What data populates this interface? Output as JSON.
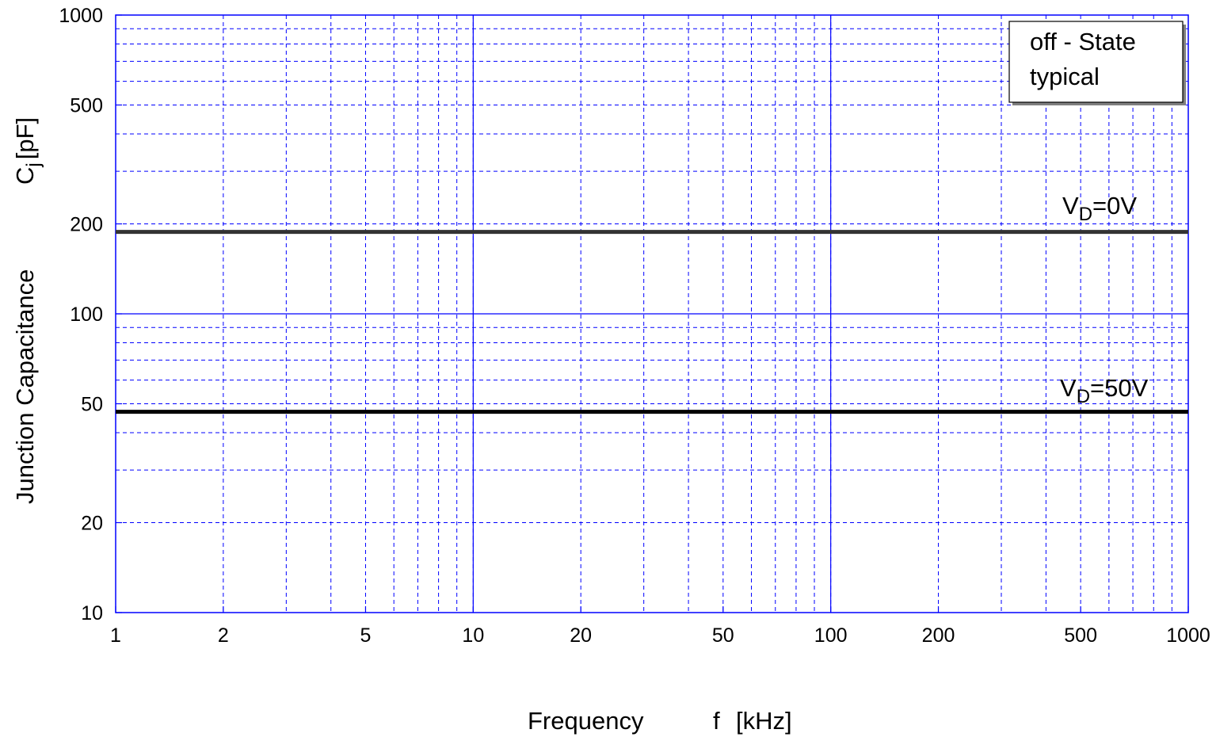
{
  "chart_data": {
    "type": "line",
    "x_scale": "log",
    "y_scale": "log",
    "xlim": [
      1,
      1000
    ],
    "ylim": [
      10,
      1000
    ],
    "x_ticks": [
      {
        "value": 1,
        "label": "1"
      },
      {
        "value": 2,
        "label": "2"
      },
      {
        "value": 5,
        "label": "5"
      },
      {
        "value": 10,
        "label": "10"
      },
      {
        "value": 20,
        "label": "20"
      },
      {
        "value": 50,
        "label": "50"
      },
      {
        "value": 100,
        "label": "100"
      },
      {
        "value": 200,
        "label": "200"
      },
      {
        "value": 500,
        "label": "500"
      },
      {
        "value": 1000,
        "label": "1000"
      }
    ],
    "y_ticks": [
      {
        "value": 10,
        "label": "10"
      },
      {
        "value": 20,
        "label": "20"
      },
      {
        "value": 50,
        "label": "50"
      },
      {
        "value": 100,
        "label": "100"
      },
      {
        "value": 200,
        "label": "200"
      },
      {
        "value": 500,
        "label": "500"
      },
      {
        "value": 1000,
        "label": "1000"
      }
    ],
    "xlabel": {
      "main": "Frequency",
      "var": "f",
      "unit": "[kHz]"
    },
    "ylabel": {
      "main": "Junction Capacitance",
      "sym": "C",
      "sub": "j",
      "unit": "[pF]"
    },
    "legend": {
      "lines": [
        "off - State",
        "typical"
      ],
      "placement": "top-right"
    },
    "grid": true,
    "series": [
      {
        "name_main": "V",
        "name_sub": "D",
        "name_rest": "=0V",
        "x": [
          1,
          1000
        ],
        "y": [
          188,
          188
        ],
        "color": "#333333"
      },
      {
        "name_main": "V",
        "name_sub": "D",
        "name_rest": "=50V",
        "x": [
          1,
          1000
        ],
        "y": [
          47,
          47
        ],
        "color": "#000000"
      }
    ],
    "colors": {
      "grid": "#0000ff",
      "frame": "#0000ff"
    }
  }
}
